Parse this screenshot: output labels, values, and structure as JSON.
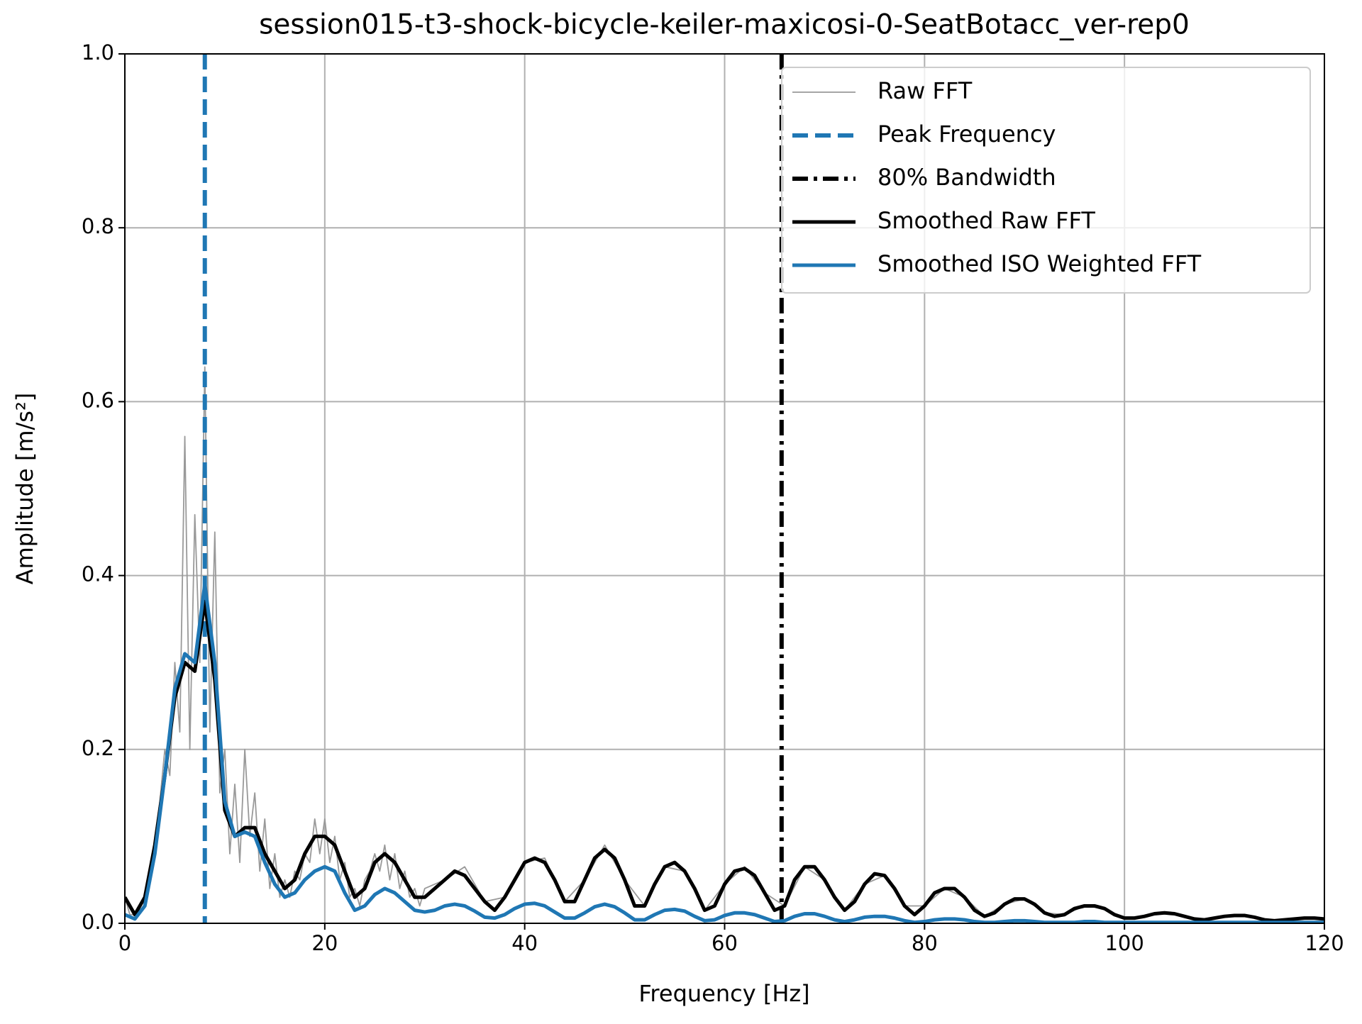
{
  "chart_data": {
    "type": "line",
    "title": "session015-t3-shock-bicycle-keiler-maxicosi-0-SeatBotacc_ver-rep0",
    "xlabel": "Frequency [Hz]",
    "ylabel": "Amplitude [m/s²]",
    "xlim": [
      0,
      120
    ],
    "ylim": [
      0,
      1
    ],
    "xticks": [
      0,
      20,
      40,
      60,
      80,
      100,
      120
    ],
    "yticks": [
      {
        "value": 0,
        "label": "0.0"
      },
      0.2,
      0.4,
      0.6,
      0.8,
      {
        "value": 1,
        "label": "1.0"
      }
    ],
    "grid": true,
    "legend": "upper right",
    "x": [
      0,
      1,
      2,
      3,
      4,
      5,
      6,
      7,
      8,
      9,
      10,
      11,
      12,
      13,
      14,
      15,
      16,
      17,
      18,
      19,
      20,
      21,
      22,
      23,
      24,
      25,
      26,
      27,
      28,
      29,
      30,
      31,
      32,
      33,
      34,
      35,
      36,
      37,
      38,
      39,
      40,
      41,
      42,
      43,
      44,
      45,
      46,
      47,
      48,
      49,
      50,
      51,
      52,
      53,
      54,
      55,
      56,
      57,
      58,
      59,
      60,
      61,
      62,
      63,
      64,
      65,
      66,
      67,
      68,
      69,
      70,
      71,
      72,
      73,
      74,
      75,
      76,
      77,
      78,
      79,
      80,
      81,
      82,
      83,
      84,
      85,
      86,
      87,
      88,
      89,
      90,
      91,
      92,
      93,
      94,
      95,
      96,
      97,
      98,
      99,
      100,
      101,
      102,
      103,
      104,
      105,
      106,
      107,
      108,
      109,
      110,
      111,
      112,
      113,
      114,
      115,
      116,
      117,
      118,
      119,
      120
    ],
    "series": [
      {
        "name": "Raw FFT",
        "color": "#999999",
        "width": 1.8,
        "x": [
          0,
          0.5,
          1,
          1.5,
          2,
          2.5,
          3,
          3.5,
          4,
          4.5,
          5,
          5.5,
          6,
          6.5,
          7,
          7.5,
          8,
          8.5,
          9,
          9.5,
          10,
          10.5,
          11,
          11.5,
          12,
          12.5,
          13,
          13.5,
          14,
          14.5,
          15,
          15.5,
          16,
          16.5,
          17,
          17.5,
          18,
          18.5,
          19,
          19.5,
          20,
          20.5,
          21,
          21.5,
          22,
          22.5,
          23,
          23.5,
          24,
          24.5,
          25,
          25.5,
          26,
          26.5,
          27,
          27.5,
          28,
          28.5,
          29,
          29.5,
          30,
          32,
          34,
          36,
          38,
          40,
          42,
          44,
          46,
          48,
          50,
          52,
          54,
          56,
          58,
          60,
          62,
          64,
          66,
          68,
          70,
          72,
          74,
          76,
          78,
          80,
          82,
          84,
          86,
          88,
          90,
          92,
          94,
          96,
          98,
          100,
          102,
          104,
          106,
          108,
          110,
          112,
          114,
          116,
          118,
          120
        ],
        "values": [
          0.03,
          0.01,
          0.01,
          0.02,
          0.03,
          0.05,
          0.1,
          0.14,
          0.2,
          0.17,
          0.3,
          0.22,
          0.56,
          0.2,
          0.47,
          0.3,
          0.64,
          0.22,
          0.45,
          0.15,
          0.2,
          0.08,
          0.16,
          0.07,
          0.2,
          0.1,
          0.15,
          0.06,
          0.12,
          0.04,
          0.08,
          0.03,
          0.05,
          0.03,
          0.06,
          0.05,
          0.08,
          0.07,
          0.12,
          0.08,
          0.12,
          0.07,
          0.1,
          0.05,
          0.07,
          0.03,
          0.04,
          0.02,
          0.05,
          0.06,
          0.08,
          0.06,
          0.09,
          0.05,
          0.08,
          0.04,
          0.06,
          0.03,
          0.04,
          0.02,
          0.04,
          0.05,
          0.065,
          0.025,
          0.03,
          0.07,
          0.075,
          0.025,
          0.05,
          0.09,
          0.05,
          0.02,
          0.065,
          0.06,
          0.015,
          0.045,
          0.065,
          0.035,
          0.02,
          0.065,
          0.05,
          0.015,
          0.045,
          0.055,
          0.02,
          0.02,
          0.04,
          0.03,
          0.008,
          0.022,
          0.028,
          0.012,
          0.01,
          0.02,
          0.017,
          0.006,
          0.008,
          0.012,
          0.008,
          0.004,
          0.008,
          0.009,
          0.004,
          0.004,
          0.006,
          0.005
        ]
      },
      {
        "name": "Smoothed Raw FFT",
        "color": "#000000",
        "width": 5,
        "values": [
          0.03,
          0.01,
          0.03,
          0.09,
          0.17,
          0.26,
          0.3,
          0.29,
          0.37,
          0.28,
          0.13,
          0.1,
          0.11,
          0.11,
          0.08,
          0.06,
          0.04,
          0.05,
          0.08,
          0.1,
          0.1,
          0.09,
          0.06,
          0.03,
          0.04,
          0.07,
          0.08,
          0.07,
          0.05,
          0.03,
          0.03,
          0.04,
          0.05,
          0.06,
          0.055,
          0.04,
          0.025,
          0.015,
          0.03,
          0.05,
          0.07,
          0.075,
          0.07,
          0.05,
          0.025,
          0.025,
          0.05,
          0.075,
          0.085,
          0.075,
          0.05,
          0.02,
          0.02,
          0.045,
          0.065,
          0.07,
          0.06,
          0.04,
          0.015,
          0.02,
          0.045,
          0.06,
          0.063,
          0.055,
          0.035,
          0.015,
          0.02,
          0.05,
          0.065,
          0.065,
          0.05,
          0.03,
          0.015,
          0.025,
          0.045,
          0.057,
          0.055,
          0.04,
          0.02,
          0.01,
          0.02,
          0.035,
          0.04,
          0.04,
          0.03,
          0.015,
          0.008,
          0.012,
          0.022,
          0.028,
          0.028,
          0.022,
          0.012,
          0.008,
          0.01,
          0.017,
          0.02,
          0.02,
          0.017,
          0.01,
          0.006,
          0.006,
          0.008,
          0.011,
          0.012,
          0.011,
          0.008,
          0.005,
          0.004,
          0.006,
          0.008,
          0.009,
          0.009,
          0.007,
          0.004,
          0.003,
          0.004,
          0.005,
          0.006,
          0.006,
          0.005
        ]
      },
      {
        "name": "Smoothed ISO Weighted FFT",
        "color": "#1f77b4",
        "width": 5,
        "values": [
          0.01,
          0.005,
          0.02,
          0.08,
          0.17,
          0.27,
          0.31,
          0.3,
          0.39,
          0.3,
          0.14,
          0.1,
          0.105,
          0.1,
          0.07,
          0.045,
          0.03,
          0.035,
          0.05,
          0.06,
          0.065,
          0.06,
          0.035,
          0.015,
          0.02,
          0.033,
          0.04,
          0.035,
          0.025,
          0.015,
          0.013,
          0.015,
          0.02,
          0.022,
          0.02,
          0.014,
          0.007,
          0.006,
          0.01,
          0.017,
          0.022,
          0.023,
          0.02,
          0.013,
          0.006,
          0.006,
          0.012,
          0.019,
          0.022,
          0.019,
          0.012,
          0.004,
          0.004,
          0.01,
          0.015,
          0.016,
          0.014,
          0.008,
          0.003,
          0.004,
          0.009,
          0.012,
          0.012,
          0.01,
          0.006,
          0.002,
          0.003,
          0.008,
          0.011,
          0.011,
          0.008,
          0.004,
          0.002,
          0.004,
          0.007,
          0.008,
          0.008,
          0.006,
          0.003,
          0.001,
          0.002,
          0.004,
          0.005,
          0.005,
          0.004,
          0.002,
          0.001,
          0.001,
          0.002,
          0.003,
          0.003,
          0.002,
          0.001,
          0.001,
          0.001,
          0.001,
          0.002,
          0.002,
          0.001,
          0.001,
          0.001,
          0.001,
          0.001,
          0.001,
          0.001,
          0.001,
          0.001,
          0.001,
          0.001,
          0.001,
          0.001,
          0.001,
          0.001,
          0.001,
          0.001,
          0.001,
          0.001,
          0.001,
          0.001,
          0.001,
          0.001
        ]
      }
    ],
    "vlines": [
      {
        "name": "Peak Frequency",
        "x": 8,
        "color": "#1f77b4",
        "style": "dashed"
      },
      {
        "name": "80% Bandwidth",
        "x": 65.7,
        "color": "#000000",
        "style": "dashdot"
      }
    ]
  }
}
